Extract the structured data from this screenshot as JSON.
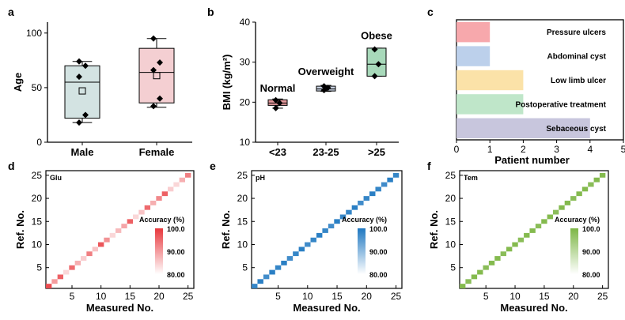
{
  "colors": {
    "male_box": "#d3e3e2",
    "female_box": "#f4cfd2",
    "bmi_normal": "#e49a9d",
    "bmi_overweight": "#c9d3e3",
    "bmi_obese": "#a8d9ba",
    "glu": "#e8383d",
    "ph": "#1f78c1",
    "tem": "#7db645",
    "patient_bars": [
      "#f7a8ac",
      "#bcd0eb",
      "#fbe2a8",
      "#bfe6c9",
      "#c8c6dd"
    ]
  },
  "chart_data": [
    {
      "panel": "a",
      "type": "box",
      "ylabel": "Age",
      "ylim": [
        0,
        110
      ],
      "yticks": [
        0,
        50,
        100
      ],
      "categories": [
        "Male",
        "Female"
      ],
      "boxes": [
        {
          "name": "Male",
          "min": 18,
          "q1": 22,
          "median": 55,
          "mean": 47,
          "q3": 70,
          "max": 74,
          "points": [
            74,
            70,
            60,
            25,
            18
          ]
        },
        {
          "name": "Female",
          "min": 32,
          "q1": 36,
          "median": 64,
          "mean": 61,
          "q3": 86,
          "max": 95,
          "points": [
            95,
            73,
            66,
            40,
            33
          ]
        }
      ]
    },
    {
      "panel": "b",
      "type": "box",
      "ylabel": "BMI (kg/m²)",
      "ylim": [
        10,
        40
      ],
      "yticks": [
        10,
        20,
        30,
        40
      ],
      "categories": [
        "<23",
        "23-25",
        ">25"
      ],
      "annotations": [
        "Normal",
        "Overweight",
        "Obese"
      ],
      "boxes": [
        {
          "name": "<23",
          "min": 18.5,
          "q1": 19.2,
          "median": 19.8,
          "q3": 20.6,
          "max": 20.8,
          "points": [
            18.5,
            19.8,
            20.5
          ]
        },
        {
          "name": "23-25",
          "min": 22.7,
          "q1": 22.8,
          "median": 23.3,
          "q3": 24.0,
          "max": 24.2,
          "points": [
            23.0,
            23.6,
            24.0
          ]
        },
        {
          "name": ">25",
          "min": 26.5,
          "q1": 26.5,
          "median": 29.5,
          "q3": 33.5,
          "max": 33.5,
          "points": [
            26.5,
            29.5,
            33.2
          ]
        }
      ]
    },
    {
      "panel": "c",
      "type": "bar",
      "xlabel": "Patient number",
      "xlim": [
        0,
        5
      ],
      "xticks": [
        0,
        1,
        2,
        3,
        4,
        5
      ],
      "categories": [
        "Pressure ulcers",
        "Abdominal cyst",
        "Low limb ulcer",
        "Postoperative treatment",
        "Sebaceous cyst"
      ],
      "values": [
        1,
        1,
        2,
        2,
        4
      ]
    },
    {
      "panel": "d",
      "type": "heatmap",
      "name": "Glu",
      "xlabel": "Measured No.",
      "ylabel": "Ref. No.",
      "xticks": [
        5,
        10,
        15,
        20,
        25
      ],
      "yticks": [
        5,
        10,
        15,
        20,
        25
      ],
      "colorbar_title": "Accuracy (%)",
      "colorbar_ticks": [
        "100.0",
        "90.00",
        "80.00"
      ],
      "colorbar_range": [
        80,
        100
      ],
      "diagonal_accuracy": [
        98,
        90,
        96,
        84,
        95,
        88,
        85,
        93,
        86,
        97,
        91,
        84,
        87,
        89,
        96,
        84,
        86,
        95,
        88,
        92,
        96,
        85,
        84,
        88,
        93
      ]
    },
    {
      "panel": "e",
      "type": "heatmap",
      "name": "pH",
      "xlabel": "Measured No.",
      "ylabel": "Ref. No.",
      "xticks": [
        5,
        10,
        15,
        20,
        25
      ],
      "yticks": [
        5,
        10,
        15,
        20,
        25
      ],
      "colorbar_title": "Accuracy (%)",
      "colorbar_ticks": [
        "100.0",
        "90.00",
        "80.00"
      ],
      "colorbar_range": [
        80,
        100
      ],
      "diagonal_accuracy": [
        98,
        99,
        97,
        99,
        98,
        99,
        97,
        98,
        99,
        97,
        98,
        99,
        98,
        97,
        99,
        98,
        98,
        99,
        97,
        98,
        99,
        98,
        97,
        99,
        98
      ]
    },
    {
      "panel": "f",
      "type": "heatmap",
      "name": "Tem",
      "xlabel": "Measured No.",
      "ylabel": "Ref. No.",
      "xticks": [
        5,
        10,
        15,
        20,
        25
      ],
      "yticks": [
        5,
        10,
        15,
        20,
        25
      ],
      "colorbar_title": "Accuracy (%)",
      "colorbar_ticks": [
        "100.0",
        "90.00",
        "80.00"
      ],
      "colorbar_range": [
        80,
        100
      ],
      "diagonal_accuracy": [
        99,
        98,
        99,
        99,
        98,
        99,
        99,
        98,
        99,
        99,
        98,
        99,
        99,
        98,
        99,
        99,
        98,
        99,
        99,
        98,
        99,
        99,
        98,
        99,
        99
      ]
    }
  ]
}
